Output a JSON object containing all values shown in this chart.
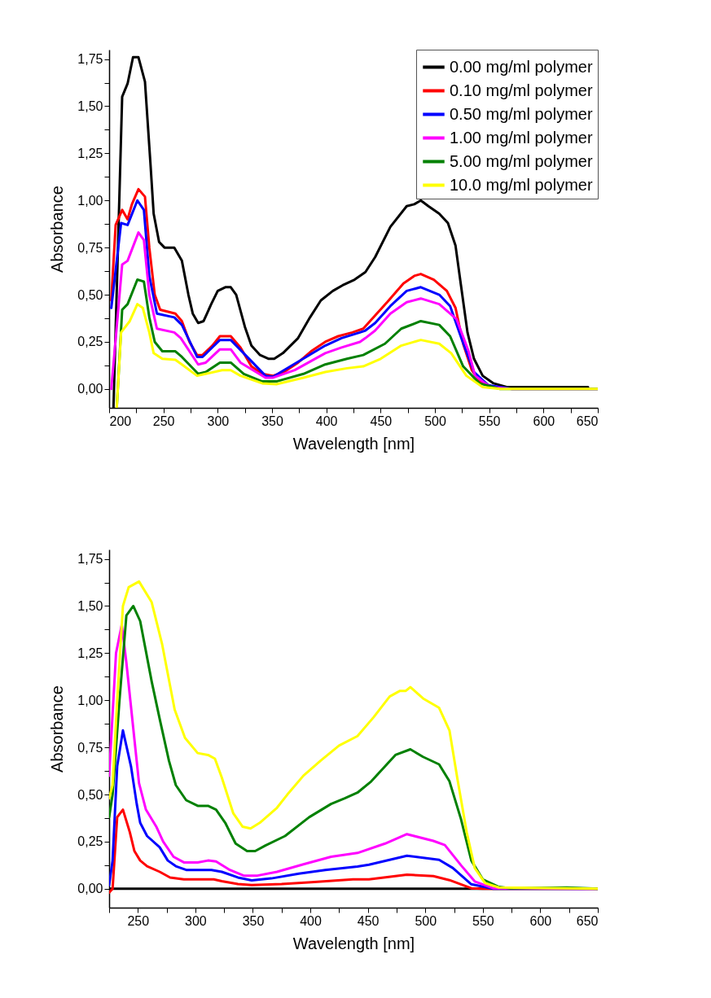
{
  "chart_data": [
    {
      "type": "line",
      "xlabel": "Wavelength [nm]",
      "ylabel": "Absorbance",
      "xlim": [
        200,
        650
      ],
      "ylim": [
        -0.1,
        1.8
      ],
      "xticks": [
        200,
        {
          "value": 225,
          "label": null
        },
        250,
        {
          "value": 275,
          "label": null
        },
        300,
        {
          "value": 325,
          "label": null
        },
        350,
        {
          "value": 375,
          "label": null
        },
        400,
        {
          "value": 425,
          "label": null
        },
        450,
        {
          "value": 475,
          "label": null
        },
        500,
        {
          "value": 525,
          "label": null
        },
        550,
        {
          "value": 575,
          "label": null
        },
        600,
        {
          "value": 625,
          "label": null
        },
        650
      ],
      "yticks": [
        {
          "value": 0,
          "label": "0,00"
        },
        {
          "value": 0.125,
          "label": null
        },
        {
          "value": 0.25,
          "label": "0,25"
        },
        {
          "value": 0.375,
          "label": null
        },
        {
          "value": 0.5,
          "label": "0,50"
        },
        {
          "value": 0.625,
          "label": null
        },
        {
          "value": 0.75,
          "label": "0,75"
        },
        {
          "value": 0.875,
          "label": null
        },
        {
          "value": 1,
          "label": "1,00"
        },
        {
          "value": 1.125,
          "label": null
        },
        {
          "value": 1.25,
          "label": "1,25"
        },
        {
          "value": 1.375,
          "label": null
        },
        {
          "value": 1.5,
          "label": "1,50"
        },
        {
          "value": 1.625,
          "label": null
        },
        {
          "value": 1.75,
          "label": "1,75"
        }
      ],
      "grid": false,
      "legend": "top right",
      "marker": "none",
      "line_style": "solid",
      "series": [
        {
          "name": "0.00 mg/ml polymer",
          "color": "#000000",
          "x": [
            204,
            212,
            217,
            222,
            227,
            233,
            238,
            241,
            246,
            251,
            260,
            267,
            273,
            277,
            282,
            287,
            294,
            300,
            307,
            312,
            317,
            325,
            331,
            339,
            347,
            352,
            360,
            374,
            385,
            395,
            406,
            415,
            426,
            436,
            445,
            459,
            474,
            481,
            487,
            494,
            504,
            512,
            519,
            524,
            530,
            536,
            544,
            554,
            566,
            579,
            641
          ],
          "values": [
            -0.1,
            1.55,
            1.62,
            1.76,
            1.76,
            1.63,
            1.2,
            0.93,
            0.78,
            0.75,
            0.75,
            0.68,
            0.5,
            0.4,
            0.35,
            0.36,
            0.45,
            0.52,
            0.54,
            0.54,
            0.5,
            0.33,
            0.23,
            0.18,
            0.16,
            0.16,
            0.19,
            0.27,
            0.38,
            0.47,
            0.52,
            0.55,
            0.58,
            0.62,
            0.7,
            0.86,
            0.97,
            0.98,
            1.0,
            0.97,
            0.93,
            0.88,
            0.76,
            0.55,
            0.3,
            0.16,
            0.07,
            0.03,
            0.01,
            0.01,
            0.01
          ]
        },
        {
          "name": "0.10 mg/ml polymer",
          "color": "#ff0000",
          "x": [
            202,
            206,
            212,
            217,
            221,
            227,
            233,
            237,
            242,
            247,
            261,
            267,
            274,
            281,
            286,
            295,
            302,
            312,
            321,
            331,
            341,
            351,
            361,
            374,
            386,
            399,
            411,
            424,
            434,
            445,
            456,
            471,
            481,
            487,
            499,
            511,
            519,
            526,
            534,
            541,
            554
          ],
          "values": [
            0.47,
            0.87,
            0.95,
            0.9,
            0.98,
            1.06,
            1.02,
            0.75,
            0.5,
            0.42,
            0.4,
            0.36,
            0.25,
            0.18,
            0.18,
            0.23,
            0.28,
            0.28,
            0.22,
            0.12,
            0.08,
            0.07,
            0.09,
            0.14,
            0.2,
            0.25,
            0.28,
            0.3,
            0.32,
            0.39,
            0.46,
            0.56,
            0.6,
            0.61,
            0.58,
            0.52,
            0.43,
            0.24,
            0.1,
            0.04,
            0.01
          ]
        },
        {
          "name": "0.50 mg/ml polymer",
          "color": "#0000ff",
          "x": [
            202,
            211,
            217,
            226,
            232,
            237,
            244,
            260,
            267,
            281,
            286,
            302,
            312,
            344,
            351,
            399,
            414,
            431,
            436,
            445,
            459,
            474,
            487,
            504,
            514,
            525,
            536,
            549,
            571,
            650
          ],
          "values": [
            0.43,
            0.88,
            0.87,
            1.0,
            0.95,
            0.6,
            0.4,
            0.38,
            0.34,
            0.17,
            0.17,
            0.26,
            0.26,
            0.07,
            0.065,
            0.23,
            0.27,
            0.3,
            0.31,
            0.35,
            0.44,
            0.52,
            0.54,
            0.5,
            0.44,
            0.26,
            0.09,
            0.02,
            0,
            0
          ]
        },
        {
          "name": "1.00 mg/ml polymer",
          "color": "#ff00ff",
          "x": [
            202,
            212,
            217,
            227,
            232,
            237,
            244,
            260,
            266,
            282,
            289,
            302,
            312,
            321,
            344,
            351,
            371,
            399,
            414,
            431,
            436,
            445,
            459,
            474,
            487,
            504,
            520,
            531,
            537,
            551,
            571,
            650
          ],
          "values": [
            0,
            0.66,
            0.68,
            0.83,
            0.79,
            0.5,
            0.32,
            0.3,
            0.27,
            0.13,
            0.14,
            0.21,
            0.21,
            0.14,
            0.06,
            0.06,
            0.1,
            0.19,
            0.22,
            0.25,
            0.27,
            0.31,
            0.4,
            0.46,
            0.48,
            0.45,
            0.37,
            0.2,
            0.07,
            0.01,
            0,
            0
          ]
        },
        {
          "name": "5.00 mg/ml polymer",
          "color": "#008000",
          "x": [
            207,
            212,
            217,
            226,
            232,
            237,
            242,
            249,
            261,
            267,
            282,
            289,
            302,
            312,
            324,
            341,
            354,
            379,
            399,
            419,
            434,
            454,
            469,
            487,
            504,
            514,
            526,
            541,
            560,
            650
          ],
          "values": [
            -0.1,
            0.42,
            0.45,
            0.58,
            0.57,
            0.38,
            0.25,
            0.2,
            0.2,
            0.17,
            0.08,
            0.09,
            0.14,
            0.14,
            0.08,
            0.04,
            0.04,
            0.08,
            0.13,
            0.16,
            0.18,
            0.24,
            0.32,
            0.36,
            0.34,
            0.28,
            0.12,
            0.03,
            0,
            0
          ]
        },
        {
          "name": "10.0 mg/ml polymer",
          "color": "#ffff00",
          "x": [
            207,
            211,
            219,
            226,
            231,
            237,
            241,
            249,
            261,
            267,
            281,
            289,
            304,
            312,
            321,
            341,
            354,
            379,
            399,
            419,
            434,
            450,
            469,
            487,
            504,
            515,
            529,
            544,
            560,
            650
          ],
          "values": [
            -0.1,
            0.3,
            0.36,
            0.45,
            0.43,
            0.3,
            0.19,
            0.16,
            0.155,
            0.13,
            0.07,
            0.08,
            0.1,
            0.1,
            0.07,
            0.03,
            0.025,
            0.06,
            0.09,
            0.11,
            0.12,
            0.16,
            0.23,
            0.26,
            0.24,
            0.19,
            0.07,
            0.01,
            0,
            0
          ]
        }
      ]
    },
    {
      "type": "line",
      "xlabel": "Wavelength [nm]",
      "ylabel": "Absorbance",
      "xlim": [
        225,
        650
      ],
      "ylim": [
        -0.1,
        1.8
      ],
      "xticks": [
        {
          "value": 225,
          "label": null
        },
        250,
        {
          "value": 275,
          "label": null
        },
        300,
        {
          "value": 325,
          "label": null
        },
        350,
        {
          "value": 375,
          "label": null
        },
        400,
        {
          "value": 425,
          "label": null
        },
        450,
        {
          "value": 475,
          "label": null
        },
        500,
        {
          "value": 525,
          "label": null
        },
        550,
        {
          "value": 575,
          "label": null
        },
        600,
        {
          "value": 625,
          "label": null
        },
        650
      ],
      "yticks": [
        {
          "value": 0,
          "label": "0,00"
        },
        {
          "value": 0.125,
          "label": null
        },
        {
          "value": 0.25,
          "label": "0,25"
        },
        {
          "value": 0.375,
          "label": null
        },
        {
          "value": 0.5,
          "label": "0,50"
        },
        {
          "value": 0.625,
          "label": null
        },
        {
          "value": 0.75,
          "label": "0,75"
        },
        {
          "value": 0.875,
          "label": null
        },
        {
          "value": 1,
          "label": "1,00"
        },
        {
          "value": 1.125,
          "label": null
        },
        {
          "value": 1.25,
          "label": "1,25"
        },
        {
          "value": 1.375,
          "label": null
        },
        {
          "value": 1.5,
          "label": "1,50"
        },
        {
          "value": 1.625,
          "label": null
        },
        {
          "value": 1.75,
          "label": "1,75"
        }
      ],
      "grid": false,
      "legend": "top right",
      "marker": "none",
      "line_style": "solid",
      "series": [
        {
          "name": "0.00 mg/ml polymer",
          "color": "#000000",
          "x": [
            225,
            650
          ],
          "values": [
            0,
            0
          ]
        },
        {
          "name": "0.10 mg/ml polymer",
          "color": "#ff0000",
          "x": [
            225,
            228,
            232,
            237,
            243,
            247,
            252,
            258,
            269,
            278,
            290,
            316,
            323,
            337,
            349,
            375,
            401,
            437,
            451,
            484,
            507,
            521,
            540,
            550,
            650
          ],
          "values": [
            -0.02,
            0,
            0.38,
            0.42,
            0.3,
            0.2,
            0.15,
            0.12,
            0.09,
            0.06,
            0.05,
            0.05,
            0.04,
            0.025,
            0.02,
            0.025,
            0.035,
            0.05,
            0.05,
            0.075,
            0.067,
            0.046,
            0.003,
            0,
            0
          ]
        },
        {
          "name": "0.50 mg/ml polymer",
          "color": "#0000ff",
          "x": [
            225,
            228,
            232,
            237,
            244,
            249,
            252,
            258,
            269,
            276,
            283,
            292,
            314,
            323,
            337,
            349,
            366,
            390,
            413,
            441,
            451,
            484,
            512,
            524,
            540,
            559,
            650
          ],
          "values": [
            0.02,
            0.15,
            0.65,
            0.84,
            0.65,
            0.45,
            0.35,
            0.28,
            0.22,
            0.15,
            0.12,
            0.1,
            0.1,
            0.09,
            0.06,
            0.045,
            0.055,
            0.08,
            0.1,
            0.118,
            0.128,
            0.175,
            0.154,
            0.11,
            0.024,
            0,
            0
          ]
        },
        {
          "name": "1.00 mg/ml polymer",
          "color": "#ff00ff",
          "x": [
            225,
            231,
            236,
            240,
            246,
            251,
            257,
            266,
            272,
            281,
            290,
            302,
            311,
            318,
            330,
            342,
            354,
            371,
            394,
            418,
            441,
            465,
            484,
            507,
            517,
            531,
            543,
            559,
            650
          ],
          "values": [
            0.6,
            1.25,
            1.4,
            1.2,
            0.85,
            0.56,
            0.42,
            0.33,
            0.25,
            0.17,
            0.14,
            0.14,
            0.15,
            0.145,
            0.1,
            0.07,
            0.07,
            0.09,
            0.13,
            0.17,
            0.19,
            0.24,
            0.29,
            0.254,
            0.232,
            0.125,
            0.039,
            0.003,
            0
          ]
        },
        {
          "name": "5.00 mg/ml polymer",
          "color": "#008000",
          "x": [
            225,
            228,
            234,
            240,
            246,
            252,
            262,
            269,
            277,
            283,
            292,
            302,
            311,
            318,
            326,
            335,
            345,
            352,
            361,
            378,
            399,
            418,
            430,
            441,
            453,
            474,
            487,
            498,
            512,
            521,
            531,
            540,
            550,
            564,
            574,
            623,
            650
          ],
          "values": [
            0.38,
            0.5,
            1.0,
            1.45,
            1.5,
            1.42,
            1.1,
            0.9,
            0.68,
            0.55,
            0.47,
            0.44,
            0.44,
            0.42,
            0.35,
            0.24,
            0.2,
            0.2,
            0.23,
            0.28,
            0.38,
            0.45,
            0.48,
            0.51,
            0.57,
            0.71,
            0.74,
            0.7,
            0.66,
            0.57,
            0.37,
            0.15,
            0.05,
            0.01,
            0.003,
            0.007,
            0
          ]
        },
        {
          "name": "10.0 mg/ml polymer",
          "color": "#ffff00",
          "x": [
            225,
            228,
            232,
            237,
            242,
            251,
            262,
            271,
            282,
            291,
            302,
            311,
            317,
            323,
            333,
            341,
            348,
            356,
            371,
            380,
            394,
            409,
            425,
            441,
            455,
            469,
            478,
            483,
            487,
            498,
            512,
            521,
            528,
            536,
            543,
            552,
            564,
            650
          ],
          "values": [
            0.48,
            0.55,
            1.0,
            1.5,
            1.6,
            1.63,
            1.52,
            1.3,
            0.95,
            0.8,
            0.72,
            0.71,
            0.69,
            0.59,
            0.4,
            0.33,
            0.32,
            0.35,
            0.43,
            0.5,
            0.6,
            0.68,
            0.76,
            0.81,
            0.91,
            1.02,
            1.05,
            1.05,
            1.07,
            1.01,
            0.96,
            0.84,
            0.58,
            0.3,
            0.11,
            0.03,
            0.007,
            0
          ]
        }
      ]
    }
  ]
}
